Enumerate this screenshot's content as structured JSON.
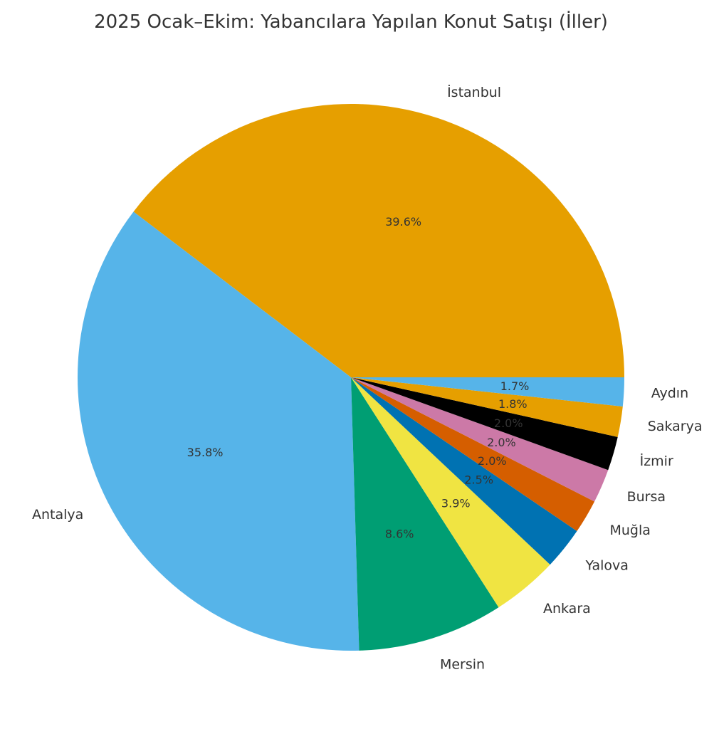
{
  "chart_data": {
    "type": "pie",
    "title": "2025 Ocak–Ekim: Yabancılara Yapılan Konut Satışı (İller)",
    "slices": [
      {
        "label": "İstanbul",
        "value": 39.6,
        "pct_label": "39.6%",
        "color": "#E69F00"
      },
      {
        "label": "Antalya",
        "value": 35.8,
        "pct_label": "35.8%",
        "color": "#56B4E9"
      },
      {
        "label": "Mersin",
        "value": 8.6,
        "pct_label": "8.6%",
        "color": "#009E73"
      },
      {
        "label": "Ankara",
        "value": 3.9,
        "pct_label": "3.9%",
        "color": "#F0E442"
      },
      {
        "label": "Yalova",
        "value": 2.5,
        "pct_label": "2.5%",
        "color": "#0072B2"
      },
      {
        "label": "Muğla",
        "value": 2.0,
        "pct_label": "2.0%",
        "color": "#D55E00"
      },
      {
        "label": "Bursa",
        "value": 2.0,
        "pct_label": "2.0%",
        "color": "#CC79A7"
      },
      {
        "label": "İzmir",
        "value": 2.0,
        "pct_label": "2.0%",
        "color": "#000000"
      },
      {
        "label": "Sakarya",
        "value": 1.8,
        "pct_label": "1.8%",
        "color": "#E69F00"
      },
      {
        "label": "Aydın",
        "value": 1.7,
        "pct_label": "1.7%",
        "color": "#56B4E9"
      }
    ]
  }
}
